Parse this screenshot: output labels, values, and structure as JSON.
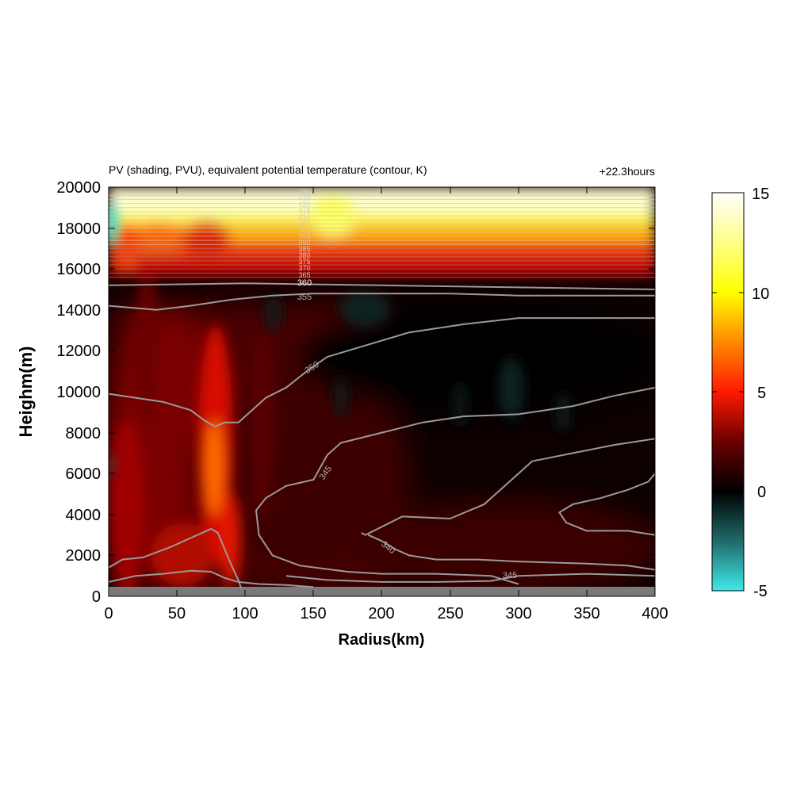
{
  "chart_data": {
    "type": "heatmap",
    "title": "PV (shading, PVU), equivalent potential temperature (contour, K)",
    "time_label": "+22.3hours",
    "xlabel": "Radius(km)",
    "ylabel": "Heighm(m)",
    "xlim": [
      0,
      400
    ],
    "ylim": [
      0,
      20000
    ],
    "x_ticks": [
      "0",
      "50",
      "100",
      "150",
      "200",
      "250",
      "300",
      "350",
      "400"
    ],
    "y_ticks": [
      "0",
      "2000",
      "4000",
      "6000",
      "8000",
      "10000",
      "12000",
      "14000",
      "16000",
      "18000",
      "20000"
    ],
    "shading": {
      "variable": "PV",
      "units": "PVU",
      "range": [
        -5,
        15
      ],
      "colorbar_ticks": [
        "15",
        "10",
        "5",
        "0",
        "-5"
      ],
      "colormap": [
        {
          "value": -5,
          "color": "#40e8e8"
        },
        {
          "value": -2.5,
          "color": "#206a6a"
        },
        {
          "value": 0,
          "color": "#000000"
        },
        {
          "value": 2.5,
          "color": "#6a0000"
        },
        {
          "value": 5,
          "color": "#ff1a00"
        },
        {
          "value": 7.5,
          "color": "#ff8a00"
        },
        {
          "value": 10,
          "color": "#ffff00"
        },
        {
          "value": 12.5,
          "color": "#ffff88"
        },
        {
          "value": 15,
          "color": "#ffffff"
        }
      ],
      "features": [
        {
          "name": "tropopause PV maximum",
          "height_range": [
            16500,
            19500
          ],
          "pv": 10
        },
        {
          "name": "eyewall PV tower",
          "radius_range": [
            60,
            100
          ],
          "height_range": [
            500,
            16000
          ],
          "pv": 6
        },
        {
          "name": "negative PV near center aloft",
          "radius": 2,
          "height": 18000,
          "pv": -5
        }
      ],
      "ground_mask_height": 500
    },
    "contours": {
      "variable": "equivalent potential temperature",
      "units": "K",
      "color": "#9a9a9a",
      "labels": [
        "345",
        "340",
        "345",
        "350",
        "355",
        "360",
        "365",
        "370",
        "375",
        "380",
        "385",
        "390",
        "395",
        "400",
        "405",
        "410",
        "415",
        "420",
        "425",
        "430"
      ],
      "lines": [
        {
          "level": 345,
          "points": [
            [
              0,
              700
            ],
            [
              20,
              1000
            ],
            [
              40,
              1100
            ],
            [
              60,
              1250
            ],
            [
              75,
              1200
            ],
            [
              85,
              900
            ],
            [
              95,
              700
            ],
            [
              110,
              600
            ],
            [
              130,
              550
            ],
            [
              150,
              450
            ]
          ]
        },
        {
          "level": 345,
          "points": [
            [
              0,
              1400
            ],
            [
              10,
              1800
            ],
            [
              25,
              1900
            ],
            [
              45,
              2400
            ],
            [
              65,
              3000
            ],
            [
              75,
              3300
            ],
            [
              80,
              3100
            ],
            [
              85,
              2300
            ],
            [
              90,
              1500
            ],
            [
              95,
              800
            ],
            [
              97,
              400
            ]
          ]
        },
        {
          "level": 340,
          "points": [
            [
              190,
              3000
            ],
            [
              200,
              2700
            ],
            [
              210,
              2300
            ],
            [
              220,
              2000
            ],
            [
              240,
              1800
            ],
            [
              270,
              1800
            ],
            [
              300,
              1700
            ],
            [
              350,
              1600
            ],
            [
              380,
              1500
            ],
            [
              400,
              1300
            ]
          ]
        },
        {
          "level": 340,
          "points": [
            [
              400,
              6000
            ],
            [
              395,
              5600
            ],
            [
              380,
              5200
            ],
            [
              360,
              4800
            ],
            [
              340,
              4500
            ],
            [
              330,
              4100
            ],
            [
              335,
              3600
            ],
            [
              350,
              3200
            ],
            [
              380,
              3200
            ],
            [
              400,
              3000
            ]
          ]
        },
        {
          "level": 345,
          "points": [
            [
              400,
              7700
            ],
            [
              370,
              7400
            ],
            [
              340,
              7000
            ],
            [
              310,
              6600
            ],
            [
              290,
              5400
            ],
            [
              275,
              4500
            ],
            [
              250,
              3800
            ],
            [
              215,
              3900
            ],
            [
              200,
              3400
            ],
            [
              188,
              3000
            ],
            [
              185,
              3100
            ]
          ]
        },
        {
          "level": 345,
          "points": [
            [
              130,
              1000
            ],
            [
              160,
              800
            ],
            [
              200,
              700
            ],
            [
              240,
              700
            ],
            [
              280,
              750
            ],
            [
              300,
              1000
            ],
            [
              350,
              1100
            ],
            [
              400,
              1000
            ]
          ]
        },
        {
          "level": 350,
          "points": [
            [
              400,
              10200
            ],
            [
              370,
              9800
            ],
            [
              340,
              9300
            ],
            [
              300,
              8900
            ],
            [
              260,
              8800
            ],
            [
              230,
              8500
            ],
            [
              200,
              8000
            ],
            [
              170,
              7500
            ],
            [
              160,
              6900
            ],
            [
              150,
              5700
            ],
            [
              130,
              5400
            ],
            [
              115,
              4800
            ],
            [
              108,
              4200
            ],
            [
              110,
              3000
            ],
            [
              120,
              2000
            ],
            [
              140,
              1500
            ],
            [
              175,
              1200
            ],
            [
              200,
              1100
            ],
            [
              240,
              1100
            ],
            [
              280,
              1000
            ],
            [
              300,
              600
            ]
          ]
        },
        {
          "level": 350,
          "points": [
            [
              0,
              9900
            ],
            [
              20,
              9700
            ],
            [
              40,
              9500
            ],
            [
              60,
              9100
            ],
            [
              70,
              8600
            ],
            [
              78,
              8300
            ],
            [
              85,
              8500
            ],
            [
              95,
              8500
            ],
            [
              105,
              9100
            ],
            [
              115,
              9700
            ],
            [
              130,
              10200
            ],
            [
              145,
              11000
            ],
            [
              160,
              11700
            ],
            [
              185,
              12200
            ],
            [
              220,
              12900
            ],
            [
              260,
              13300
            ],
            [
              300,
              13600
            ],
            [
              350,
              13600
            ],
            [
              400,
              13600
            ]
          ]
        },
        {
          "level": 355,
          "points": [
            [
              0,
              14200
            ],
            [
              35,
              14000
            ],
            [
              60,
              14200
            ],
            [
              90,
              14500
            ],
            [
              120,
              14700
            ],
            [
              150,
              14800
            ],
            [
              200,
              14800
            ],
            [
              250,
              14800
            ],
            [
              300,
              14700
            ],
            [
              350,
              14700
            ],
            [
              400,
              14700
            ]
          ]
        },
        {
          "level": 360,
          "points": [
            [
              0,
              15200
            ],
            [
              100,
              15300
            ],
            [
              200,
              15200
            ],
            [
              300,
              15100
            ],
            [
              400,
              15000
            ]
          ]
        }
      ]
    }
  }
}
